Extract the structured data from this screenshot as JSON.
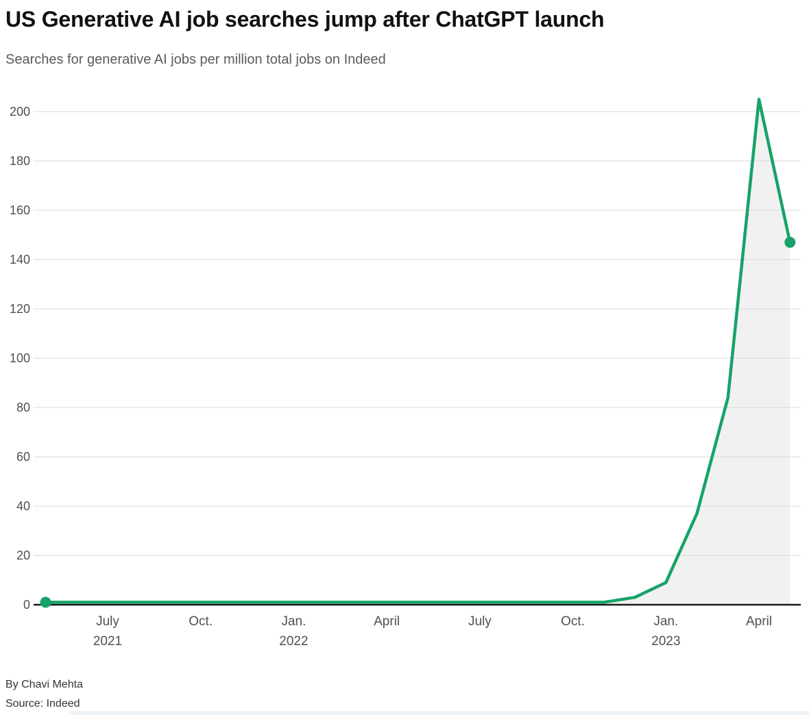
{
  "header": {
    "title": "US Generative AI job searches jump after ChatGPT launch",
    "subtitle": "Searches for generative AI jobs per million total jobs on Indeed"
  },
  "footer": {
    "byline": "By Chavi Mehta",
    "source": "Source: Indeed"
  },
  "colors": {
    "line": "#17a368",
    "marker": "#17a368",
    "area_fill": "#f1f1f1",
    "gridline": "#d9d9d9",
    "axis": "#1a1a1a",
    "tick_label": "#4f4f4f",
    "title_text": "#111111",
    "subtitle_text": "#5b5b5b",
    "bottom_strip": "#edf3f7"
  },
  "chart_data": {
    "type": "line",
    "title": "US Generative AI job searches jump after ChatGPT launch",
    "subtitle": "Searches for generative AI jobs per million total jobs on Indeed",
    "x": [
      "May 2021",
      "June 2021",
      "July 2021",
      "Aug. 2021",
      "Sept. 2021",
      "Oct. 2021",
      "Nov. 2021",
      "Dec. 2021",
      "Jan. 2022",
      "Feb. 2022",
      "March 2022",
      "April 2022",
      "May 2022",
      "June 2022",
      "July 2022",
      "Aug. 2022",
      "Sept. 2022",
      "Oct. 2022",
      "Nov. 2022",
      "Dec. 2022",
      "Jan. 2023",
      "Feb. 2023",
      "March 2023",
      "April 2023",
      "May 2023"
    ],
    "series": [
      {
        "name": "Generative AI job searches per million total jobs",
        "values": [
          1,
          1,
          1,
          1,
          1,
          1,
          1,
          1,
          1,
          1,
          1,
          1,
          1,
          1,
          1,
          1,
          1,
          1,
          1,
          3,
          9,
          37,
          84,
          205,
          147
        ]
      }
    ],
    "ylim": [
      0,
      205
    ],
    "yticks": [
      0,
      20,
      40,
      60,
      80,
      100,
      120,
      140,
      160,
      180,
      200
    ],
    "xticks": [
      {
        "index": 2,
        "line1": "July",
        "line2": "2021"
      },
      {
        "index": 5,
        "line1": "Oct.",
        "line2": ""
      },
      {
        "index": 8,
        "line1": "Jan.",
        "line2": "2022"
      },
      {
        "index": 11,
        "line1": "April",
        "line2": ""
      },
      {
        "index": 14,
        "line1": "July",
        "line2": ""
      },
      {
        "index": 17,
        "line1": "Oct.",
        "line2": ""
      },
      {
        "index": 20,
        "line1": "Jan.",
        "line2": "2023"
      },
      {
        "index": 23,
        "line1": "April",
        "line2": ""
      }
    ],
    "grid": "horizontal-only",
    "legend": "none",
    "markers": "first and last data points only",
    "area": "light gray fill under line down to zero baseline",
    "annotations": []
  }
}
